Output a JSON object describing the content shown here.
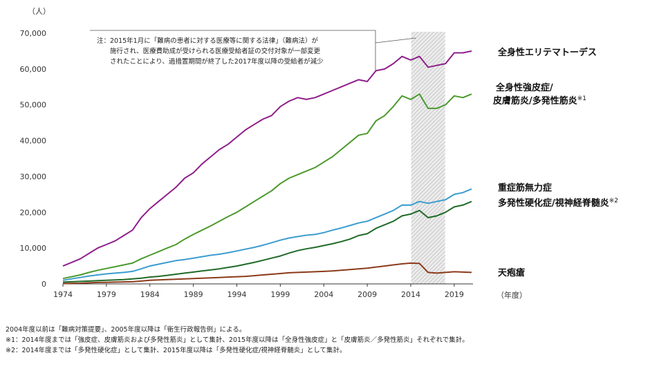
{
  "chart_data": {
    "type": "line",
    "y_unit": "（人）",
    "x_unit": "（年度）",
    "xlim": [
      1974,
      2021
    ],
    "ylim": [
      0,
      70000
    ],
    "x_ticks": [
      1974,
      1979,
      1984,
      1989,
      1994,
      1999,
      2004,
      2009,
      2014,
      2019
    ],
    "x_tick_labels": [
      "1974",
      "1979",
      "1984",
      "1989",
      "1994",
      "1999",
      "2004",
      "2009",
      "2014",
      "2019"
    ],
    "y_ticks": [
      0,
      10000,
      20000,
      30000,
      40000,
      50000,
      60000,
      70000
    ],
    "y_tick_labels": [
      "0",
      "10,000",
      "20,000",
      "30,000",
      "40,000",
      "50,000",
      "60,000",
      "70,000"
    ],
    "grid": false,
    "shaded_range": [
      2015,
      2017
    ],
    "x": [
      1974,
      1975,
      1976,
      1977,
      1978,
      1979,
      1980,
      1981,
      1982,
      1983,
      1984,
      1985,
      1986,
      1987,
      1988,
      1989,
      1990,
      1991,
      1992,
      1993,
      1994,
      1995,
      1996,
      1997,
      1998,
      1999,
      2000,
      2001,
      2002,
      2003,
      2004,
      2005,
      2006,
      2007,
      2008,
      2009,
      2010,
      2011,
      2012,
      2013,
      2014,
      2015,
      2016,
      2017,
      2018,
      2019,
      2020,
      2021
    ],
    "series": [
      {
        "name_lines": [
          "全身性エリテマトーデス"
        ],
        "note": "",
        "color": "#8e1e8a",
        "values": [
          5000,
          6000,
          7000,
          8500,
          10000,
          11000,
          12000,
          13500,
          15000,
          18500,
          21000,
          23000,
          25000,
          27000,
          29500,
          31000,
          33500,
          35500,
          37500,
          39000,
          41000,
          43000,
          44500,
          46000,
          47000,
          49500,
          51000,
          52000,
          51500,
          52000,
          53000,
          54000,
          55000,
          56000,
          57000,
          56500,
          59500,
          60000,
          61500,
          63500,
          62500,
          63500,
          60500,
          61000,
          61500,
          64500,
          64500,
          65000
        ]
      },
      {
        "name_lines": [
          "全身性強皮症/",
          "皮膚筋炎/多発性筋炎"
        ],
        "note": "※1",
        "color": "#4a9a2c",
        "values": [
          1500,
          2000,
          2500,
          3200,
          3800,
          4300,
          4800,
          5300,
          5800,
          7000,
          8000,
          9000,
          10000,
          11000,
          12500,
          13800,
          15000,
          16200,
          17500,
          18800,
          20000,
          21500,
          23000,
          24500,
          26000,
          28000,
          29500,
          30500,
          31500,
          32500,
          34000,
          35500,
          37500,
          39500,
          41500,
          42000,
          45500,
          47000,
          49500,
          52500,
          51500,
          53000,
          49000,
          49000,
          50000,
          52500,
          52000,
          53000
        ]
      },
      {
        "name_lines": [
          "重症筋無力症"
        ],
        "note": "",
        "color": "#3a9ccf",
        "values": [
          1000,
          1400,
          1800,
          2200,
          2500,
          2800,
          3000,
          3200,
          3500,
          4200,
          5000,
          5500,
          6000,
          6500,
          6800,
          7200,
          7600,
          8000,
          8300,
          8700,
          9200,
          9700,
          10200,
          10800,
          11500,
          12200,
          12800,
          13200,
          13600,
          13800,
          14300,
          15000,
          15600,
          16300,
          17000,
          17500,
          18500,
          19500,
          20500,
          22000,
          22000,
          23000,
          22500,
          23000,
          23500,
          25000,
          25500,
          26500
        ]
      },
      {
        "name_lines": [
          "多発性硬化症/視神経脊髄炎"
        ],
        "note": "※2",
        "color": "#1f6a27",
        "values": [
          500,
          600,
          700,
          800,
          900,
          1000,
          1100,
          1200,
          1400,
          1600,
          1900,
          2100,
          2400,
          2700,
          3000,
          3300,
          3600,
          3900,
          4200,
          4600,
          5000,
          5500,
          6000,
          6600,
          7200,
          7800,
          8600,
          9300,
          9800,
          10200,
          10700,
          11200,
          11800,
          12500,
          13500,
          14000,
          15500,
          16500,
          17500,
          19000,
          19500,
          20500,
          18500,
          19000,
          20000,
          21500,
          22000,
          23000
        ]
      },
      {
        "name_lines": [
          "天疱瘡"
        ],
        "note": "",
        "color": "#8b3a1a",
        "values": [
          100,
          150,
          200,
          300,
          400,
          450,
          500,
          550,
          600,
          800,
          1000,
          1100,
          1200,
          1300,
          1400,
          1500,
          1600,
          1700,
          1800,
          1900,
          2000,
          2100,
          2300,
          2500,
          2700,
          2900,
          3100,
          3200,
          3300,
          3400,
          3500,
          3600,
          3800,
          4000,
          4200,
          4400,
          4700,
          5000,
          5300,
          5600,
          5800,
          5700,
          3200,
          3000,
          3200,
          3400,
          3300,
          3200
        ]
      }
    ],
    "annotation": {
      "lines": [
        "注：2015年1月に「難病の患者に対する医療等に関する法律」（難病法）が",
        "　　施行され、医療費助成が受けられる医療受給者証の交付対象が一部変更",
        "　　されたことにより、過措置期間が終了した2017年度以降の受給者が減少"
      ]
    }
  },
  "footnotes": [
    "2004年度以前は「難病対策提要」、2005年度以降は「衛生行政報告例」による。",
    "※1：2014年度までは「強皮症、皮膚筋炎および多発性筋炎」として集計、2015年度以降は「全身性強皮症」と「皮膚筋炎／多発性筋炎」それぞれで集計。",
    "※2：2014年度までは「多発性硬化症」として集計、2015年度以降は「多発性硬化症/視神経脊髄炎」として集計。"
  ]
}
